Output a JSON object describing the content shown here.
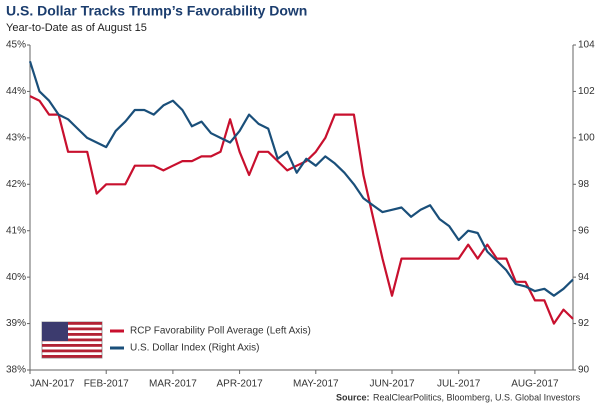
{
  "chart_data": {
    "type": "line",
    "title": "U.S. Dollar Tracks Trump’s Favorability Down",
    "subtitle": "Year-to-Date as of August 15",
    "source_label": "Source:",
    "source": "RealClearPolitics, Bloomberg, U.S. Global Investors",
    "categories": [
      "JAN-2017",
      null,
      null,
      null,
      null,
      null,
      null,
      null,
      "FEB-2017",
      null,
      null,
      null,
      null,
      null,
      null,
      "MAR-2017",
      null,
      null,
      null,
      null,
      null,
      null,
      "APR-2017",
      null,
      null,
      null,
      null,
      null,
      null,
      null,
      "MAY-2017",
      null,
      null,
      null,
      null,
      null,
      null,
      null,
      "JUN-2017",
      null,
      null,
      null,
      null,
      null,
      null,
      "JUL-2017",
      null,
      null,
      null,
      null,
      null,
      null,
      null,
      "AUG-2017",
      null,
      null,
      null,
      null
    ],
    "series": [
      {
        "name": "RCP Favorability Poll Average (Left Axis)",
        "color": "#c8102e",
        "values": [
          43.9,
          43.8,
          43.5,
          43.5,
          42.7,
          42.7,
          42.7,
          41.8,
          42.0,
          42.0,
          42.0,
          42.4,
          42.4,
          42.4,
          42.3,
          42.4,
          42.5,
          42.5,
          42.6,
          42.6,
          42.7,
          43.4,
          42.7,
          42.2,
          42.7,
          42.7,
          42.5,
          42.3,
          42.4,
          42.5,
          42.7,
          43.0,
          43.5,
          43.5,
          43.5,
          42.2,
          41.3,
          40.4,
          39.6,
          40.4,
          40.4,
          40.4,
          40.4,
          40.4,
          40.4,
          40.4,
          40.7,
          40.4,
          40.7,
          40.4,
          40.4,
          39.9,
          39.9,
          39.5,
          39.5,
          39.0,
          39.3,
          39.1
        ]
      },
      {
        "name": "U.S. Dollar Index (Right Axis)",
        "color": "#1a4f7a",
        "axis": "y2",
        "values": [
          103.3,
          102,
          101.6,
          101,
          100.8,
          100.4,
          100,
          99.8,
          99.6,
          100.3,
          100.7,
          101.2,
          101.2,
          101,
          101.4,
          101.6,
          101.2,
          100.5,
          100.7,
          100.2,
          100,
          99.8,
          100.3,
          101,
          100.6,
          100.4,
          99.1,
          99.4,
          98.5,
          99.1,
          98.8,
          99.2,
          98.9,
          98.5,
          98.0,
          97.4,
          97.1,
          96.8,
          96.9,
          97.0,
          96.6,
          96.9,
          97.1,
          96.5,
          96.2,
          95.6,
          96.0,
          95.9,
          95.1,
          94.7,
          94.3,
          93.7,
          93.6,
          93.4,
          93.5,
          93.2,
          93.5,
          93.9
        ]
      }
    ],
    "ylim": [
      38,
      45
    ],
    "yticks": [
      {
        "value": 38,
        "label": "38%"
      },
      {
        "value": 39,
        "label": "39%"
      },
      {
        "value": 40,
        "label": "40%"
      },
      {
        "value": 41,
        "label": "41%"
      },
      {
        "value": 42,
        "label": "42%"
      },
      {
        "value": 43,
        "label": "43%"
      },
      {
        "value": 44,
        "label": "44%"
      },
      {
        "value": 45,
        "label": "45%"
      }
    ],
    "y2lim": [
      90,
      104
    ],
    "y2ticks": [
      90,
      92,
      94,
      96,
      98,
      100,
      102,
      104
    ],
    "legend": "lower-left"
  }
}
